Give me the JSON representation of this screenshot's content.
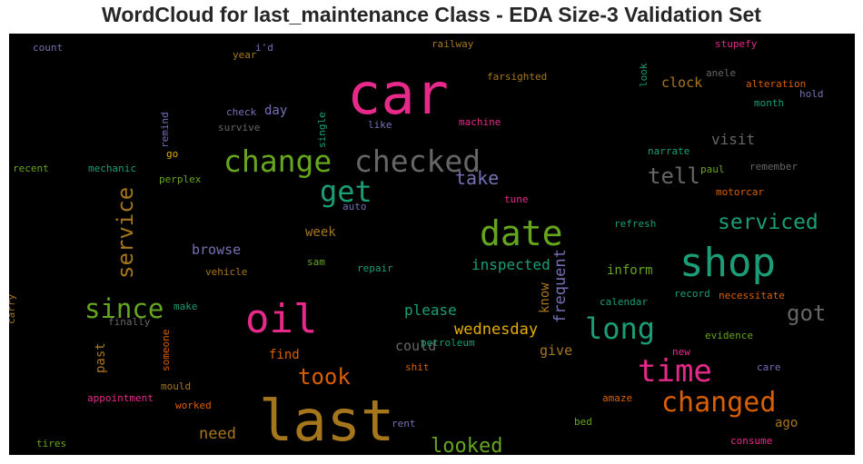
{
  "chart_data": {
    "type": "wordcloud",
    "title": "WordCloud for last_maintenance Class - EDA Size-3 Validation Set",
    "background": "#000000",
    "colormap": [
      "#1b9e77",
      "#d95f02",
      "#7570b3",
      "#e7298a",
      "#66a61e",
      "#e6ab02",
      "#a6761d",
      "#666666"
    ],
    "words": [
      {
        "text": "last",
        "color": "#a6761d",
        "vertical": false
      },
      {
        "text": "car",
        "color": "#e7298a",
        "vertical": false
      },
      {
        "text": "shop",
        "color": "#1b9e77",
        "vertical": false
      },
      {
        "text": "date",
        "color": "#66a61e",
        "vertical": false
      },
      {
        "text": "oil",
        "color": "#e7298a",
        "vertical": false
      },
      {
        "text": "time",
        "color": "#e7298a",
        "vertical": false
      },
      {
        "text": "change",
        "color": "#66a61e",
        "vertical": false
      },
      {
        "text": "checked",
        "color": "#666666",
        "vertical": false
      },
      {
        "text": "changed",
        "color": "#d95f02",
        "vertical": false
      },
      {
        "text": "long",
        "color": "#1b9e77",
        "vertical": false
      },
      {
        "text": "since",
        "color": "#66a61e",
        "vertical": false
      },
      {
        "text": "get",
        "color": "#1b9e77",
        "vertical": false
      },
      {
        "text": "got",
        "color": "#666666",
        "vertical": false
      },
      {
        "text": "took",
        "color": "#d95f02",
        "vertical": false
      },
      {
        "text": "serviced",
        "color": "#1b9e77",
        "vertical": false
      },
      {
        "text": "tell",
        "color": "#666666",
        "vertical": false
      },
      {
        "text": "service",
        "color": "#a6761d",
        "vertical": true
      },
      {
        "text": "looked",
        "color": "#66a61e",
        "vertical": false
      },
      {
        "text": "take",
        "color": "#7570b3",
        "vertical": false
      },
      {
        "text": "wednesday",
        "color": "#e6ab02",
        "vertical": false
      },
      {
        "text": "inspected",
        "color": "#1b9e77",
        "vertical": false
      },
      {
        "text": "please",
        "color": "#1b9e77",
        "vertical": false
      },
      {
        "text": "frequent",
        "color": "#7570b3",
        "vertical": true
      },
      {
        "text": "visit",
        "color": "#666666",
        "vertical": false
      },
      {
        "text": "need",
        "color": "#a6761d",
        "vertical": false
      },
      {
        "text": "inform",
        "color": "#66a61e",
        "vertical": false
      },
      {
        "text": "could",
        "color": "#666666",
        "vertical": false
      },
      {
        "text": "give",
        "color": "#a6761d",
        "vertical": false
      },
      {
        "text": "know",
        "color": "#a6761d",
        "vertical": true
      },
      {
        "text": "clock",
        "color": "#a6761d",
        "vertical": false
      },
      {
        "text": "browse",
        "color": "#7570b3",
        "vertical": false
      },
      {
        "text": "past",
        "color": "#a6761d",
        "vertical": true
      },
      {
        "text": "day",
        "color": "#7570b3",
        "vertical": false
      },
      {
        "text": "week",
        "color": "#a6761d",
        "vertical": false
      },
      {
        "text": "find",
        "color": "#d95f02",
        "vertical": false
      },
      {
        "text": "ago",
        "color": "#a6761d",
        "vertical": false
      },
      {
        "text": "count",
        "color": "#7570b3",
        "vertical": false
      },
      {
        "text": "i'd",
        "color": "#7570b3",
        "vertical": false
      },
      {
        "text": "year",
        "color": "#a6761d",
        "vertical": false
      },
      {
        "text": "railway",
        "color": "#a6761d",
        "vertical": false
      },
      {
        "text": "stupefy",
        "color": "#e7298a",
        "vertical": false
      },
      {
        "text": "farsighted",
        "color": "#a6761d",
        "vertical": false
      },
      {
        "text": "look",
        "color": "#1b9e77",
        "vertical": true
      },
      {
        "text": "anele",
        "color": "#666666",
        "vertical": false
      },
      {
        "text": "alteration",
        "color": "#d95f02",
        "vertical": false
      },
      {
        "text": "hold",
        "color": "#7570b3",
        "vertical": false
      },
      {
        "text": "month",
        "color": "#1b9e77",
        "vertical": false
      },
      {
        "text": "remind",
        "color": "#7570b3",
        "vertical": true
      },
      {
        "text": "check",
        "color": "#7570b3",
        "vertical": false
      },
      {
        "text": "survive",
        "color": "#666666",
        "vertical": false
      },
      {
        "text": "single",
        "color": "#1b9e77",
        "vertical": true
      },
      {
        "text": "like",
        "color": "#7570b3",
        "vertical": false
      },
      {
        "text": "machine",
        "color": "#e7298a",
        "vertical": false
      },
      {
        "text": "narrate",
        "color": "#1b9e77",
        "vertical": false
      },
      {
        "text": "paul",
        "color": "#66a61e",
        "vertical": false
      },
      {
        "text": "remember",
        "color": "#666666",
        "vertical": false
      },
      {
        "text": "motorcar",
        "color": "#d95f02",
        "vertical": false
      },
      {
        "text": "recent",
        "color": "#66a61e",
        "vertical": false
      },
      {
        "text": "mechanic",
        "color": "#1b9e77",
        "vertical": false
      },
      {
        "text": "go",
        "color": "#e6ab02",
        "vertical": false
      },
      {
        "text": "perplex",
        "color": "#66a61e",
        "vertical": false
      },
      {
        "text": "tune",
        "color": "#e7298a",
        "vertical": false
      },
      {
        "text": "auto",
        "color": "#7570b3",
        "vertical": false
      },
      {
        "text": "refresh",
        "color": "#1b9e77",
        "vertical": false
      },
      {
        "text": "sam",
        "color": "#66a61e",
        "vertical": false
      },
      {
        "text": "repair",
        "color": "#1b9e77",
        "vertical": false
      },
      {
        "text": "vehicle",
        "color": "#a6761d",
        "vertical": false
      },
      {
        "text": "calendar",
        "color": "#1b9e77",
        "vertical": false
      },
      {
        "text": "record",
        "color": "#1b9e77",
        "vertical": false
      },
      {
        "text": "necessitate",
        "color": "#d95f02",
        "vertical": false
      },
      {
        "text": "carry",
        "color": "#a6761d",
        "vertical": true
      },
      {
        "text": "make",
        "color": "#1b9e77",
        "vertical": false
      },
      {
        "text": "finally",
        "color": "#666666",
        "vertical": false
      },
      {
        "text": "someone",
        "color": "#d95f02",
        "vertical": true
      },
      {
        "text": "petroleum",
        "color": "#1b9e77",
        "vertical": false
      },
      {
        "text": "evidence",
        "color": "#66a61e",
        "vertical": false
      },
      {
        "text": "new",
        "color": "#e7298a",
        "vertical": false
      },
      {
        "text": "shit",
        "color": "#d95f02",
        "vertical": false
      },
      {
        "text": "care",
        "color": "#7570b3",
        "vertical": false
      },
      {
        "text": "mould",
        "color": "#a6761d",
        "vertical": false
      },
      {
        "text": "appointment",
        "color": "#e7298a",
        "vertical": false
      },
      {
        "text": "worked",
        "color": "#d95f02",
        "vertical": false
      },
      {
        "text": "amaze",
        "color": "#d95f02",
        "vertical": false
      },
      {
        "text": "rent",
        "color": "#7570b3",
        "vertical": false
      },
      {
        "text": "bed",
        "color": "#66a61e",
        "vertical": false
      },
      {
        "text": "consume",
        "color": "#e7298a",
        "vertical": false
      },
      {
        "text": "tires",
        "color": "#66a61e",
        "vertical": false
      }
    ]
  }
}
